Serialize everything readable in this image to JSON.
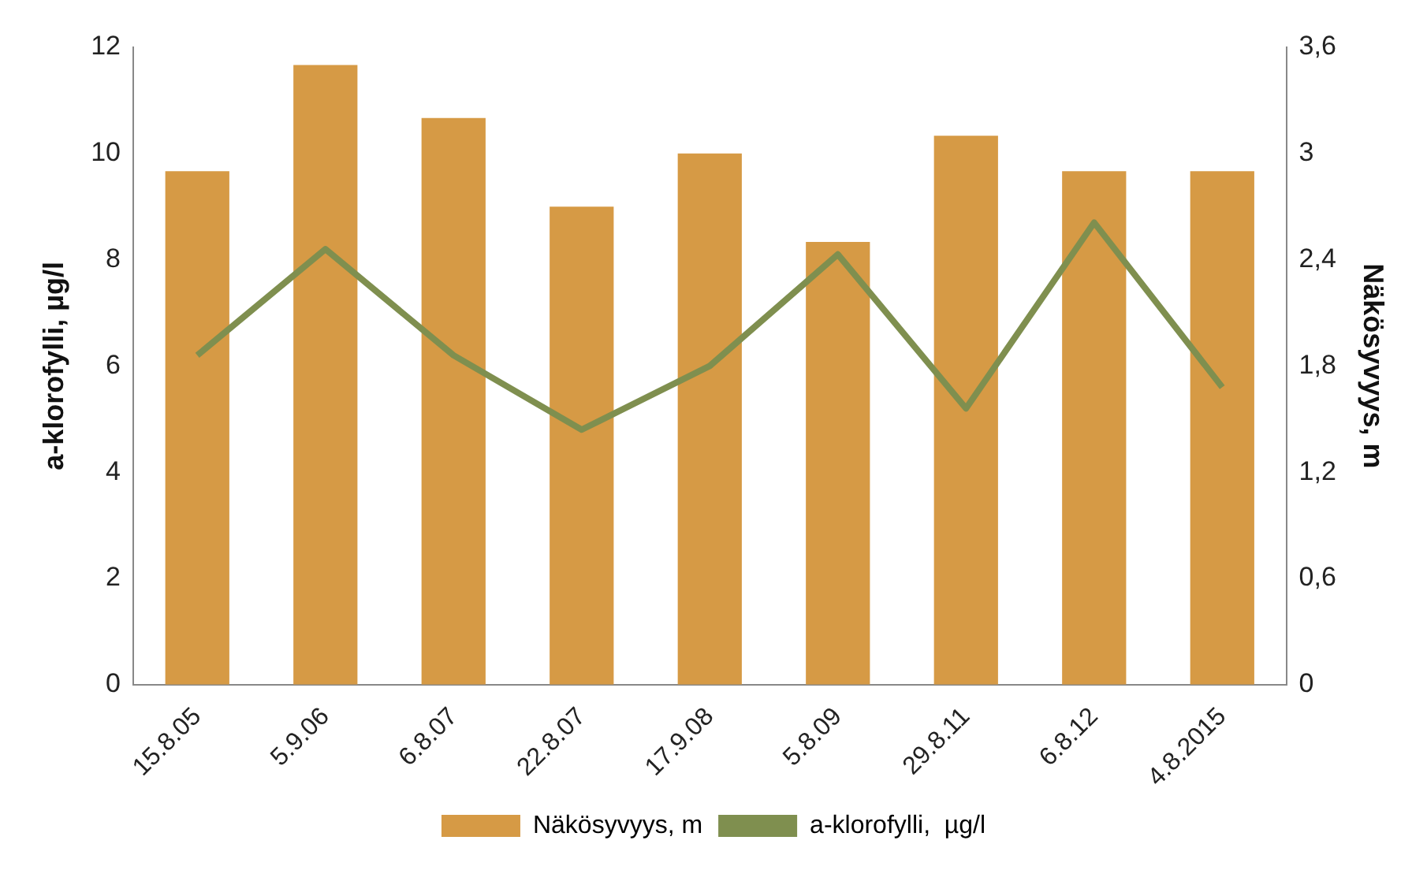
{
  "chart_data": {
    "type": "bar",
    "categories": [
      "15.8.05",
      "5.9.06",
      "6.8.07",
      "22.8.07",
      "17.9.08",
      "5.8.09",
      "29.8.11",
      "6.8.12",
      "4.8.2015"
    ],
    "series": [
      {
        "name": "Näkösyvyys, m",
        "axis": "y2",
        "color": "#d69a45",
        "values": [
          2.9,
          3.5,
          3.2,
          2.7,
          3.0,
          2.5,
          3.1,
          2.9,
          2.9
        ]
      },
      {
        "name": "a-klorofylli,  µg/l",
        "type": "line",
        "color": "#7f8f4f",
        "values": [
          6.2,
          8.2,
          6.2,
          4.8,
          6.0,
          8.1,
          5.2,
          8.7,
          5.6
        ]
      }
    ],
    "ylabel": "a-klorofylli, µg/l",
    "y2label": "Näkösyvyys, m",
    "ylim": [
      0,
      12
    ],
    "yticks": [
      0,
      2,
      4,
      6,
      8,
      10,
      12
    ],
    "y2lim": [
      0,
      3.6
    ],
    "y2ticks": [
      0,
      {
        "value": 0.6,
        "label": "0,6"
      },
      {
        "value": 1.2,
        "label": "1,2"
      },
      {
        "value": 1.8,
        "label": "1,8"
      },
      {
        "value": 2.4,
        "label": "2,4"
      },
      3,
      {
        "value": 3.6,
        "label": "3,6"
      }
    ],
    "grid": false,
    "legend": "bottom",
    "marker": "none",
    "line_style": "solid"
  }
}
